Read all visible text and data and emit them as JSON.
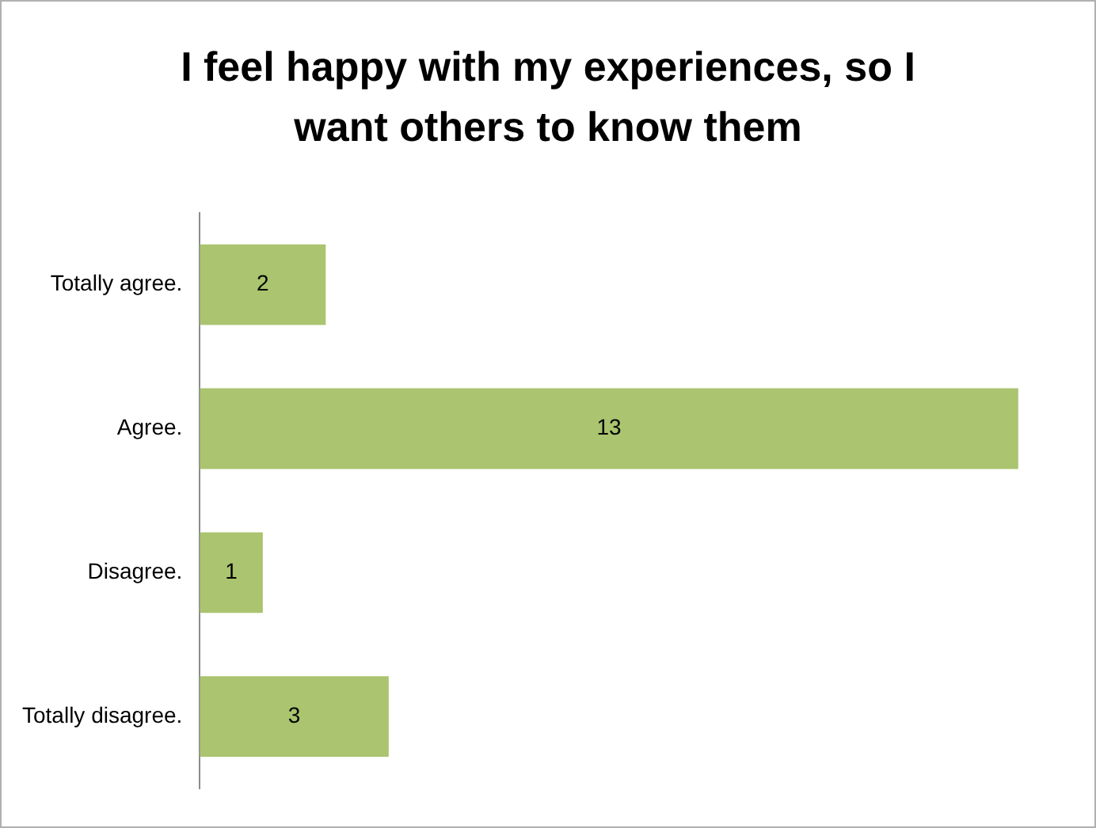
{
  "chart_data": {
    "type": "bar",
    "orientation": "horizontal",
    "title": "I feel happy with my experiences, so I want others to know them",
    "categories": [
      "Totally agree.",
      "Agree.",
      "Disagree.",
      "Totally disagree."
    ],
    "values": [
      2,
      13,
      1,
      3
    ],
    "color": "#aac46f",
    "data_labels": true,
    "legend": false
  }
}
